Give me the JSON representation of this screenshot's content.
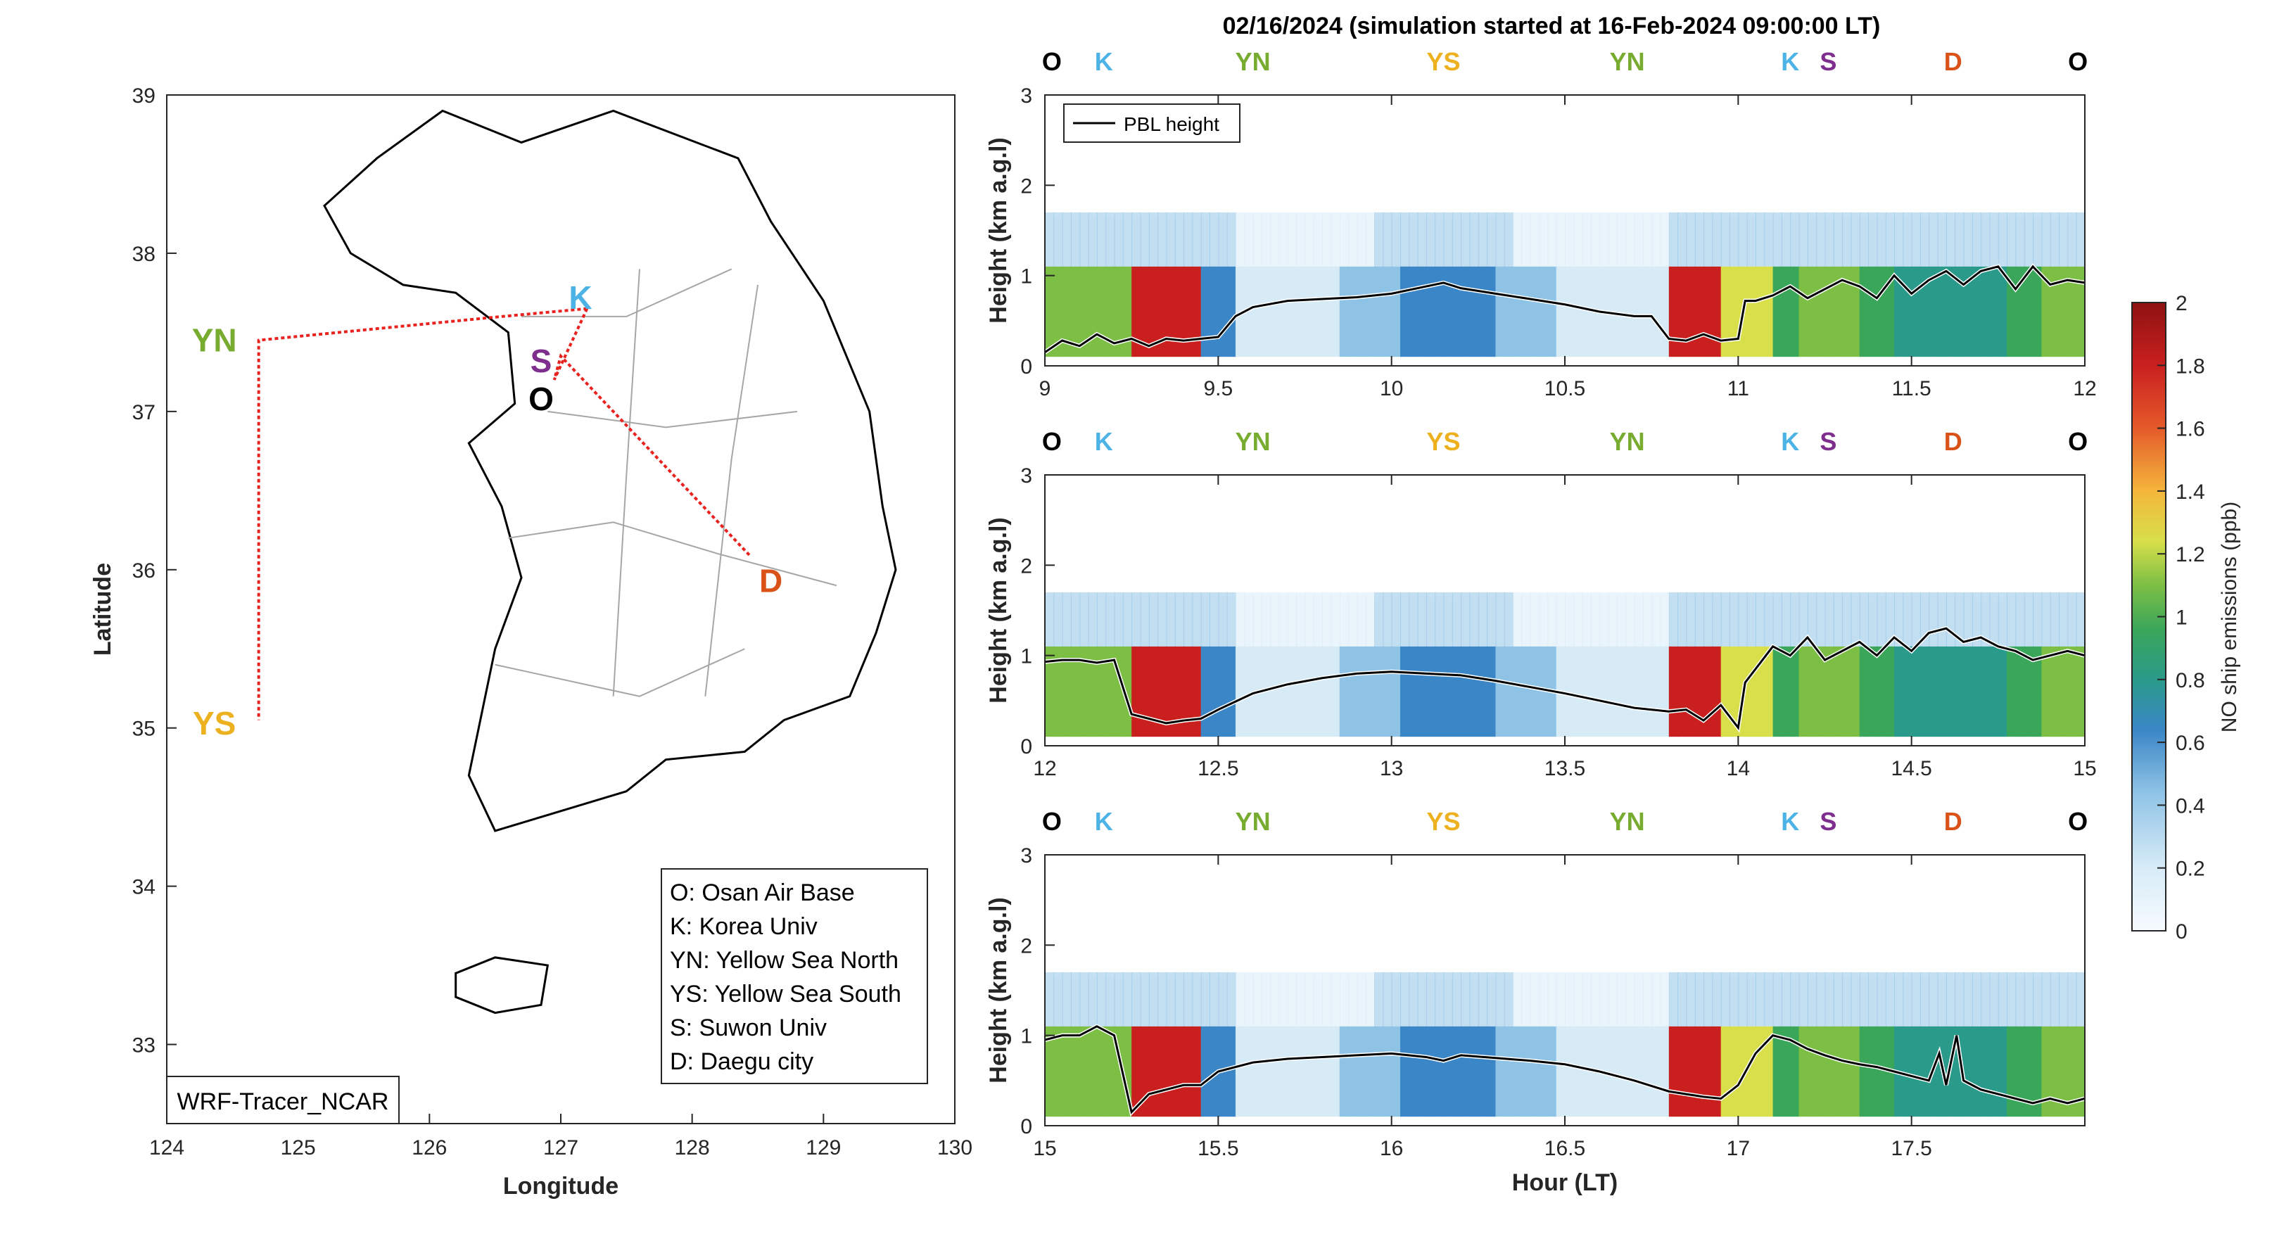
{
  "title": "02/16/2024 (simulation started at 16-Feb-2024 09:00:00 LT)",
  "colors": {
    "O": "#000000",
    "K": "#4db3e6",
    "YN": "#77ac30",
    "YS": "#edb120",
    "S": "#7e2f8e",
    "D": "#d95319"
  },
  "map": {
    "xlabel": "Longitude",
    "ylabel": "Latitude",
    "xlim": [
      124,
      130
    ],
    "ylim": [
      32.5,
      39
    ],
    "xticks": [
      "124",
      "125",
      "126",
      "127",
      "128",
      "129",
      "130"
    ],
    "yticks": [
      "33",
      "34",
      "35",
      "36",
      "37",
      "38",
      "39"
    ],
    "model_label": "WRF-Tracer_NCAR",
    "sites": [
      {
        "code": "K",
        "lon": 127.15,
        "lat": 37.72
      },
      {
        "code": "S",
        "lon": 126.85,
        "lat": 37.32
      },
      {
        "code": "O",
        "lon": 126.85,
        "lat": 37.08
      },
      {
        "code": "D",
        "lon": 128.6,
        "lat": 35.93
      }
    ],
    "side_labels": [
      {
        "code": "YN",
        "lon": 124.55,
        "lat": 37.45
      },
      {
        "code": "YS",
        "lon": 124.55,
        "lat": 35.03
      }
    ],
    "route": [
      [
        127.2,
        37.65
      ],
      [
        126.55,
        37.6
      ],
      [
        124.7,
        37.45
      ],
      [
        124.7,
        35.05
      ]
    ],
    "route2": [
      [
        127.2,
        37.65
      ],
      [
        126.95,
        37.2
      ],
      [
        127.0,
        37.35
      ],
      [
        128.45,
        36.08
      ]
    ],
    "legend": [
      "O: Osan Air Base",
      "K: Korea Univ",
      "YN: Yellow Sea North",
      "YS: Yellow Sea South",
      "S: Suwon Univ",
      "D: Daegu city"
    ]
  },
  "colorbar": {
    "label": "NO ship emissions (ppb)",
    "range": [
      0,
      2
    ],
    "ticks": [
      "0",
      "0.2",
      "0.4",
      "0.6",
      "0.8",
      "1",
      "1.2",
      "1.4",
      "1.6",
      "1.8",
      "2"
    ]
  },
  "pbl_legend": "PBL height",
  "chart_data": [
    {
      "type": "heatmap",
      "panel": 1,
      "xlim": [
        9,
        12
      ],
      "ylim": [
        0,
        3
      ],
      "xticks": [
        "9",
        "9.5",
        "10",
        "10.5",
        "11",
        "11.5",
        "12"
      ],
      "yticks": [
        "0",
        "1",
        "2",
        "3"
      ],
      "ylabel": "Height (km a.g.l)",
      "xlabel": "",
      "site_labels": [
        {
          "code": "O",
          "x": 9.02
        },
        {
          "code": "K",
          "x": 9.17
        },
        {
          "code": "YN",
          "x": 9.6
        },
        {
          "code": "YS",
          "x": 10.15
        },
        {
          "code": "YN",
          "x": 10.68
        },
        {
          "code": "K",
          "x": 11.15
        },
        {
          "code": "S",
          "x": 11.26
        },
        {
          "code": "D",
          "x": 11.62
        },
        {
          "code": "O",
          "x": 11.98
        }
      ],
      "pbl": {
        "x": [
          9.0,
          9.05,
          9.1,
          9.15,
          9.2,
          9.25,
          9.3,
          9.35,
          9.4,
          9.45,
          9.5,
          9.55,
          9.6,
          9.7,
          9.8,
          9.9,
          10.0,
          10.1,
          10.15,
          10.2,
          10.3,
          10.4,
          10.5,
          10.6,
          10.7,
          10.75,
          10.8,
          10.85,
          10.9,
          10.95,
          11.0,
          11.02,
          11.05,
          11.1,
          11.15,
          11.2,
          11.25,
          11.3,
          11.35,
          11.4,
          11.45,
          11.5,
          11.55,
          11.6,
          11.65,
          11.7,
          11.75,
          11.8,
          11.85,
          11.9,
          11.95,
          12.0
        ],
        "y": [
          0.15,
          0.28,
          0.22,
          0.35,
          0.25,
          0.3,
          0.22,
          0.3,
          0.28,
          0.3,
          0.32,
          0.55,
          0.65,
          0.72,
          0.74,
          0.76,
          0.8,
          0.88,
          0.92,
          0.86,
          0.8,
          0.74,
          0.68,
          0.6,
          0.55,
          0.55,
          0.3,
          0.28,
          0.35,
          0.28,
          0.3,
          0.72,
          0.72,
          0.78,
          0.88,
          0.75,
          0.85,
          0.95,
          0.88,
          0.75,
          1.0,
          0.8,
          0.95,
          1.05,
          0.9,
          1.05,
          1.1,
          0.85,
          1.1,
          0.9,
          0.95,
          0.92
        ]
      }
    },
    {
      "type": "heatmap",
      "panel": 2,
      "xlim": [
        12,
        15
      ],
      "ylim": [
        0,
        3
      ],
      "xticks": [
        "12",
        "12.5",
        "13",
        "13.5",
        "14",
        "14.5",
        "15"
      ],
      "yticks": [
        "0",
        "1",
        "2",
        "3"
      ],
      "ylabel": "Height (km a.g.l)",
      "xlabel": "",
      "site_labels": [
        {
          "code": "O",
          "x": 12.02
        },
        {
          "code": "K",
          "x": 12.17
        },
        {
          "code": "YN",
          "x": 12.6
        },
        {
          "code": "YS",
          "x": 13.15
        },
        {
          "code": "YN",
          "x": 13.68
        },
        {
          "code": "K",
          "x": 14.15
        },
        {
          "code": "S",
          "x": 14.26
        },
        {
          "code": "D",
          "x": 14.62
        },
        {
          "code": "O",
          "x": 14.98
        }
      ],
      "pbl": {
        "x": [
          12.0,
          12.05,
          12.1,
          12.15,
          12.2,
          12.25,
          12.3,
          12.35,
          12.4,
          12.45,
          12.5,
          12.6,
          12.7,
          12.8,
          12.9,
          13.0,
          13.1,
          13.2,
          13.3,
          13.4,
          13.5,
          13.6,
          13.7,
          13.8,
          13.85,
          13.9,
          13.95,
          14.0,
          14.02,
          14.05,
          14.1,
          14.15,
          14.2,
          14.25,
          14.3,
          14.35,
          14.4,
          14.45,
          14.5,
          14.55,
          14.6,
          14.65,
          14.7,
          14.75,
          14.8,
          14.85,
          14.9,
          14.95,
          15.0
        ],
        "y": [
          0.93,
          0.95,
          0.95,
          0.92,
          0.95,
          0.35,
          0.3,
          0.25,
          0.28,
          0.3,
          0.4,
          0.58,
          0.68,
          0.75,
          0.8,
          0.82,
          0.8,
          0.78,
          0.72,
          0.65,
          0.58,
          0.5,
          0.42,
          0.38,
          0.4,
          0.28,
          0.45,
          0.2,
          0.7,
          0.85,
          1.1,
          1.0,
          1.2,
          0.95,
          1.05,
          1.15,
          1.0,
          1.2,
          1.05,
          1.25,
          1.3,
          1.15,
          1.2,
          1.1,
          1.05,
          0.95,
          1.0,
          1.05,
          1.0
        ]
      }
    },
    {
      "type": "heatmap",
      "panel": 3,
      "xlim": [
        15,
        18
      ],
      "ylim": [
        0,
        3
      ],
      "xticks": [
        "15",
        "15.5",
        "16",
        "16.5",
        "17",
        "17.5"
      ],
      "yticks": [
        "0",
        "1",
        "2",
        "3"
      ],
      "ylabel": "Height (km a.g.l)",
      "xlabel": "Hour (LT)",
      "site_labels": [
        {
          "code": "O",
          "x": 15.02
        },
        {
          "code": "K",
          "x": 15.17
        },
        {
          "code": "YN",
          "x": 15.6
        },
        {
          "code": "YS",
          "x": 16.15
        },
        {
          "code": "YN",
          "x": 16.68
        },
        {
          "code": "K",
          "x": 17.15
        },
        {
          "code": "S",
          "x": 17.26
        },
        {
          "code": "D",
          "x": 17.62
        },
        {
          "code": "O",
          "x": 17.98
        }
      ],
      "pbl": {
        "x": [
          15.0,
          15.05,
          15.1,
          15.15,
          15.2,
          15.25,
          15.3,
          15.35,
          15.4,
          15.45,
          15.5,
          15.6,
          15.7,
          15.8,
          15.9,
          16.0,
          16.1,
          16.15,
          16.2,
          16.3,
          16.4,
          16.5,
          16.6,
          16.7,
          16.8,
          16.85,
          16.9,
          16.95,
          17.0,
          17.05,
          17.1,
          17.15,
          17.2,
          17.25,
          17.3,
          17.35,
          17.4,
          17.45,
          17.5,
          17.55,
          17.58,
          17.6,
          17.63,
          17.65,
          17.7,
          17.75,
          17.8,
          17.85,
          17.9,
          17.95,
          18.0
        ],
        "y": [
          0.95,
          1.0,
          1.0,
          1.1,
          1.0,
          0.15,
          0.35,
          0.4,
          0.45,
          0.45,
          0.6,
          0.7,
          0.74,
          0.76,
          0.78,
          0.8,
          0.76,
          0.72,
          0.78,
          0.75,
          0.72,
          0.68,
          0.6,
          0.5,
          0.38,
          0.35,
          0.32,
          0.3,
          0.45,
          0.8,
          1.0,
          0.95,
          0.85,
          0.78,
          0.72,
          0.68,
          0.65,
          0.6,
          0.55,
          0.5,
          0.8,
          0.45,
          1.0,
          0.5,
          0.4,
          0.35,
          0.3,
          0.25,
          0.3,
          0.25,
          0.3
        ]
      }
    }
  ]
}
